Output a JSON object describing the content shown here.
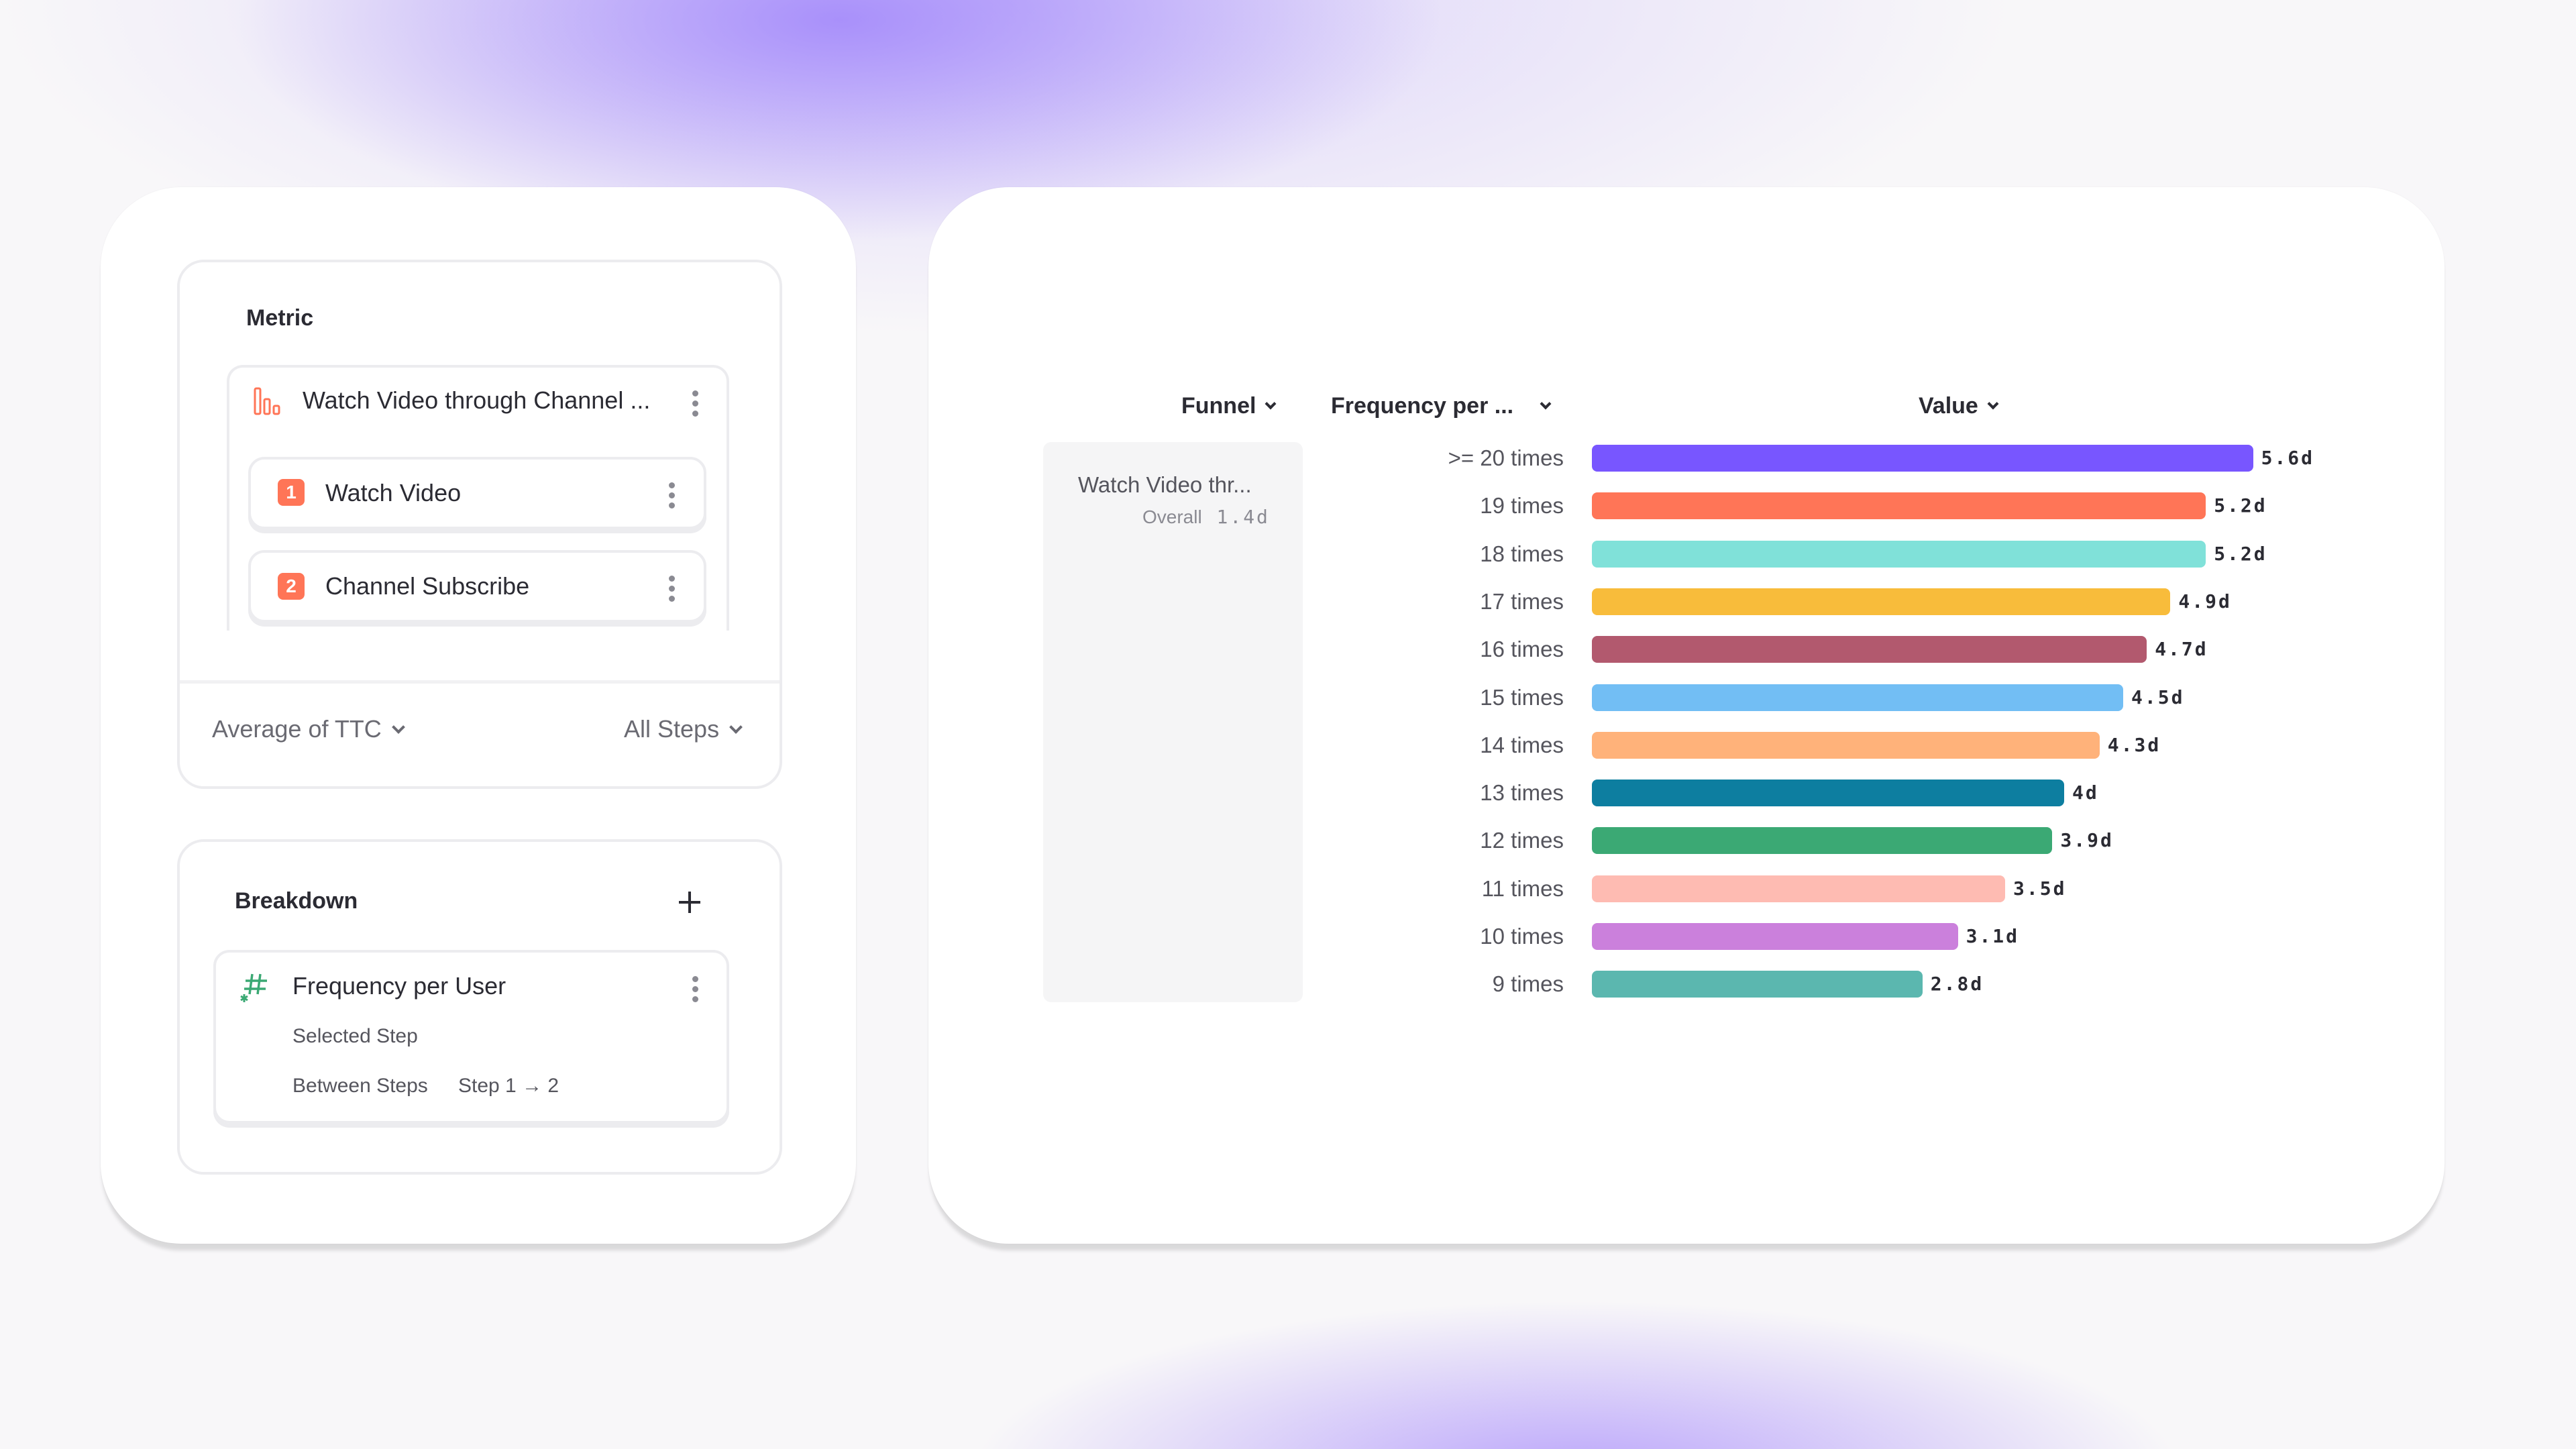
{
  "metric": {
    "title": "Metric",
    "funnel_name": "Watch Video through Channel ...",
    "steps": [
      {
        "number": "1",
        "label": "Watch Video"
      },
      {
        "number": "2",
        "label": "Channel Subscribe"
      }
    ],
    "aggregation": "Average of TTC",
    "step_scope": "All Steps"
  },
  "breakdown": {
    "title": "Breakdown",
    "property": "Frequency per User",
    "selected_step": "Selected Step",
    "between_label": "Between Steps",
    "between_value": "Step 1 → 2"
  },
  "table": {
    "columns": [
      "Funnel",
      "Frequency per ...",
      "Value"
    ],
    "funnel_cell": {
      "name": "Watch Video thr...",
      "overall_label": "Overall",
      "overall_value": "1.4d"
    }
  },
  "chart_data": {
    "type": "bar",
    "orientation": "horizontal",
    "categories": [
      ">= 20 times",
      "19 times",
      "18 times",
      "17 times",
      "16 times",
      "15 times",
      "14 times",
      "13 times",
      "12 times",
      "11 times",
      "10 times",
      "9 times"
    ],
    "values": [
      5.6,
      5.2,
      5.2,
      4.9,
      4.7,
      4.5,
      4.3,
      4.0,
      3.9,
      3.5,
      3.1,
      2.8
    ],
    "labels": [
      "5.6d",
      "5.2d",
      "5.2d",
      "4.9d",
      "4.7d",
      "4.5d",
      "4.3d",
      "4d",
      "3.9d",
      "3.5d",
      "3.1d",
      "2.8d"
    ],
    "unit": "d",
    "colors": [
      "#7856ff",
      "#ff7557",
      "#80e1d9",
      "#f8bc3b",
      "#b2596e",
      "#72bef4",
      "#ffb27a",
      "#0d7ea0",
      "#3ba974",
      "#febbb2",
      "#cb80dc",
      "#5bb7af"
    ],
    "grid": false
  },
  "colors": {
    "step_badge": "#ff7557",
    "hash_icon": "#3ba974",
    "funnel_icon": "#ff7557"
  }
}
